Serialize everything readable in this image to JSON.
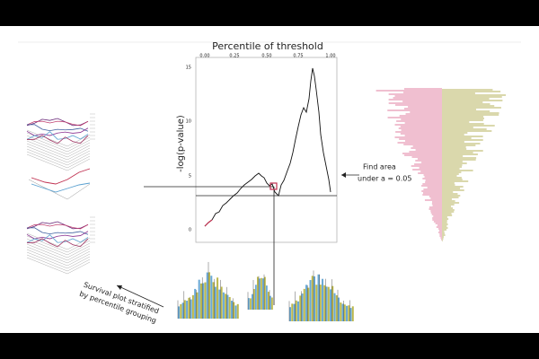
{
  "plot": {
    "title": "Percentile of threshold",
    "y_label": "-log(p-value)",
    "x_ticks": [
      "0.00",
      "0.25",
      "0.50",
      "0.75",
      "1.00"
    ],
    "y_ticks": [
      "15",
      "10",
      "5",
      "0"
    ]
  },
  "annotations": {
    "find_area": [
      "Find area",
      "under a = 0.05"
    ],
    "survival": [
      "Survival plot stratified",
      "by percentile grouping"
    ]
  }
}
